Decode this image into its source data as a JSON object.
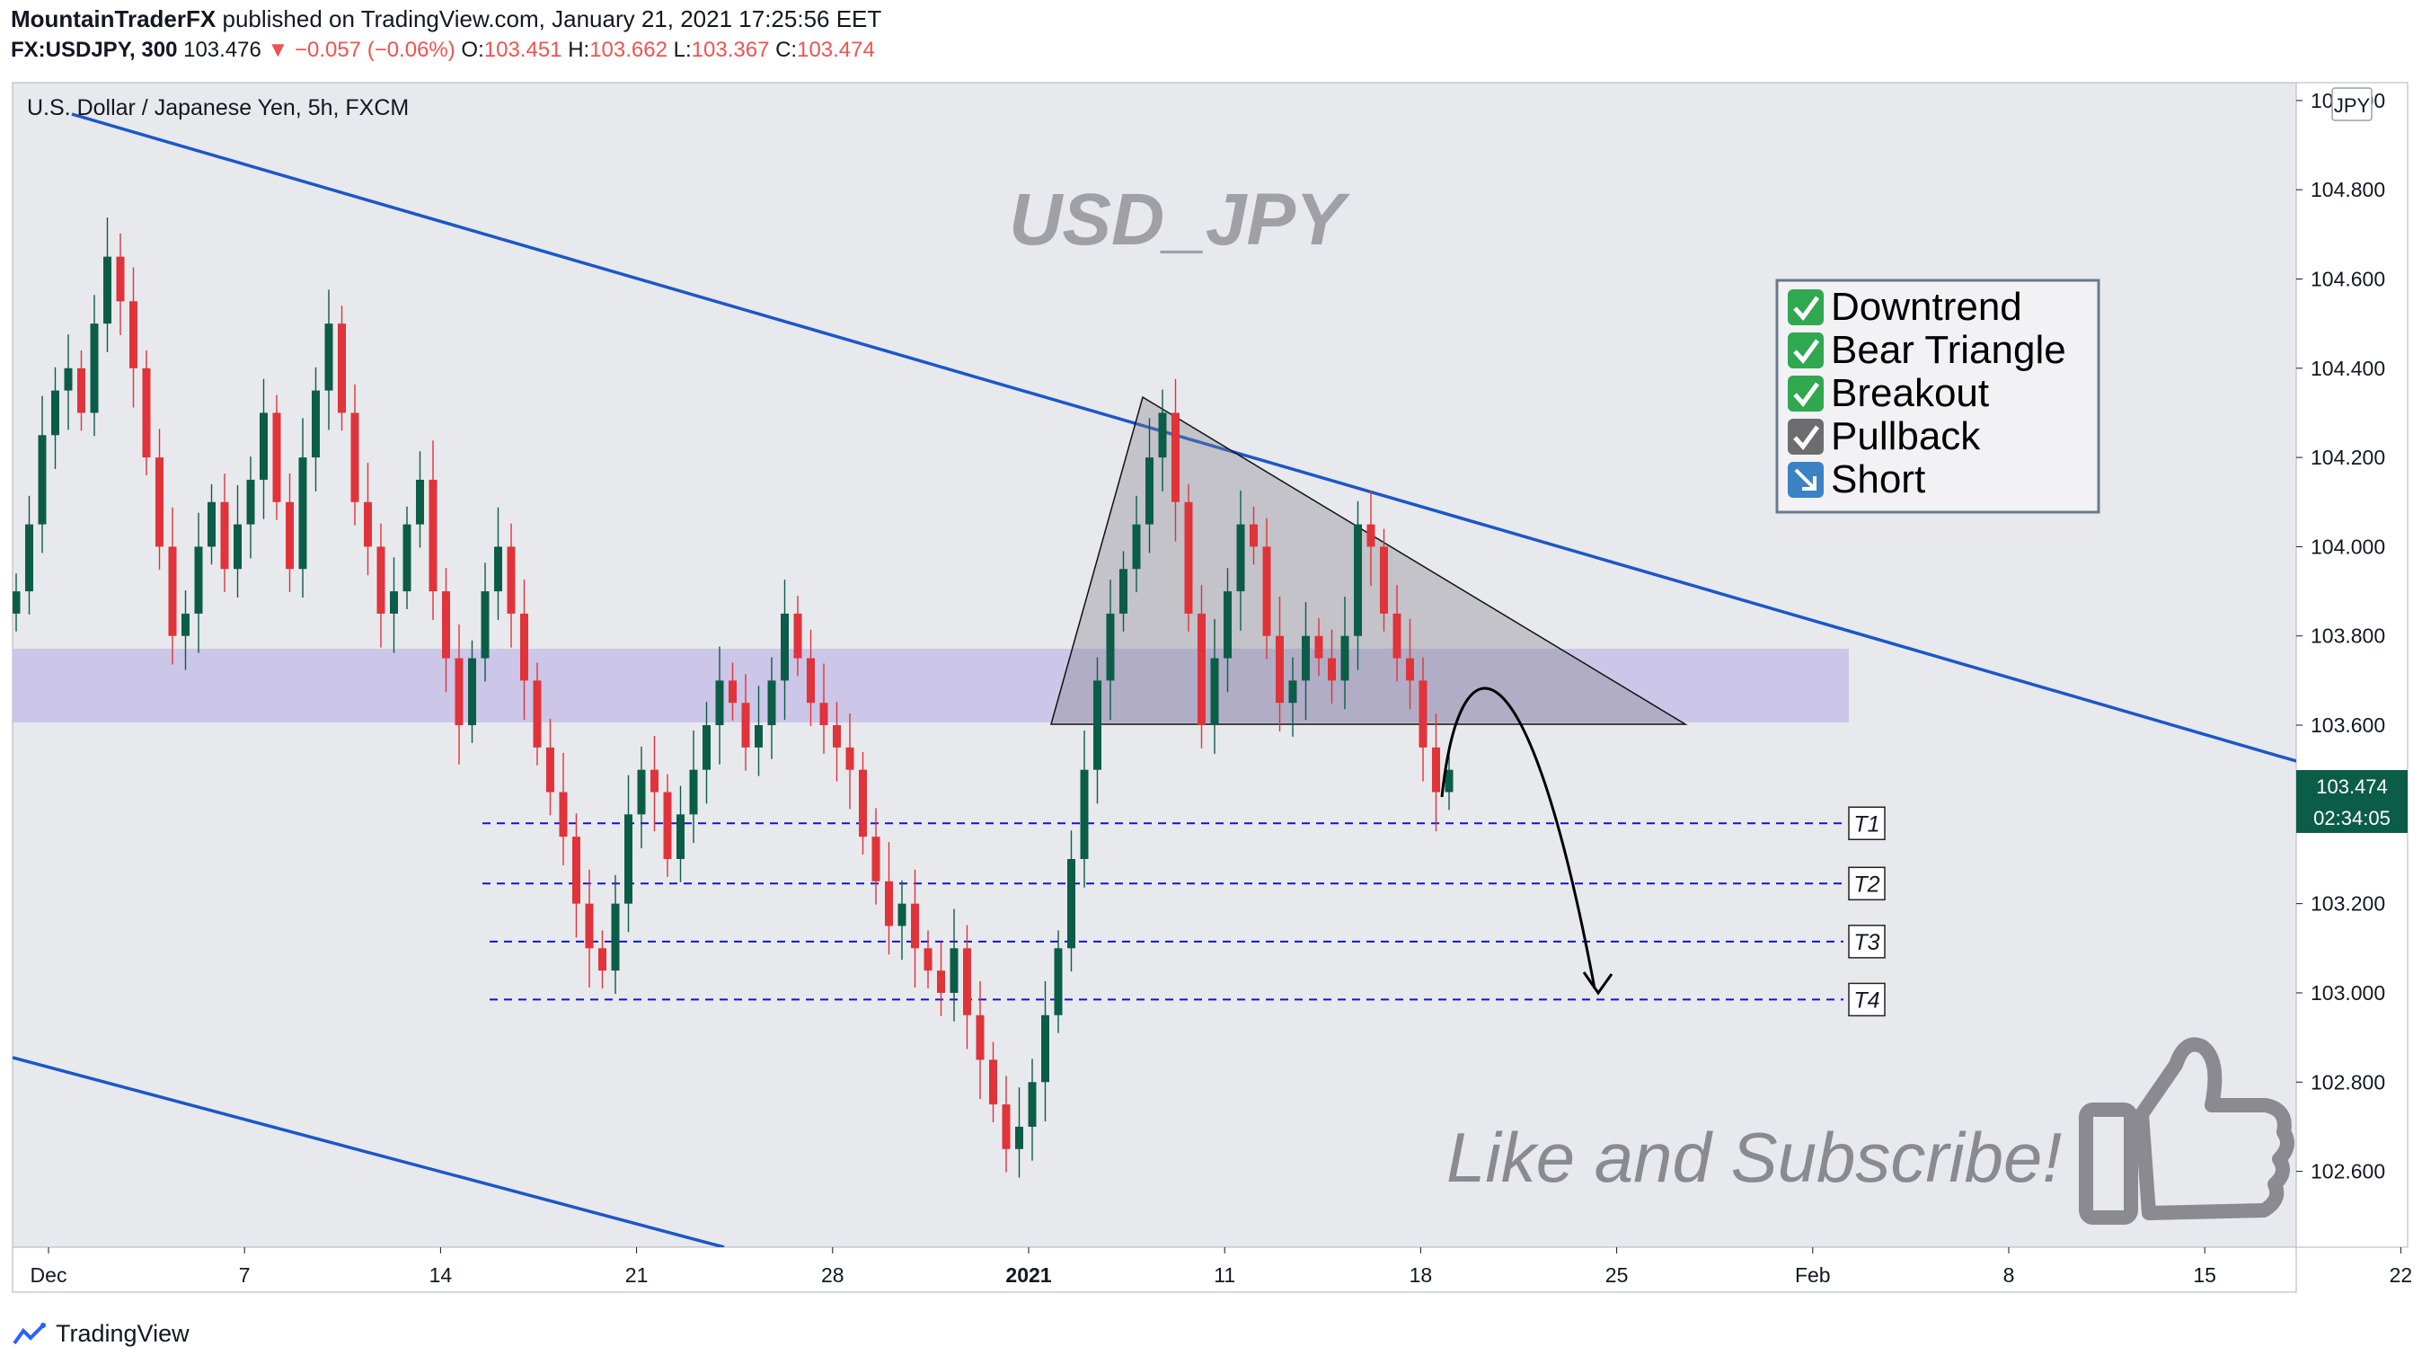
{
  "header": {
    "author": "MountainTraderFX",
    "published": "published on TradingView.com, January 21, 2021 17:25:56 EET",
    "symbol": "FX:USDJPY, 300",
    "last": "103.476",
    "change": "▼ −0.057 (−0.06%)",
    "open_label": "O:",
    "open": "103.451",
    "high_label": "H:",
    "high": "103.662",
    "low_label": "L:",
    "low": "103.367",
    "close_label": "C:",
    "close": "103.474"
  },
  "pane_title": "U.S. Dollar / Japanese Yen, 5h, FXCM",
  "watermark": "USD_JPY",
  "checklist": [
    {
      "icon": "check-green-icon",
      "text": "Downtrend"
    },
    {
      "icon": "check-green-icon",
      "text": "Bear Triangle"
    },
    {
      "icon": "check-green-icon",
      "text": "Breakout"
    },
    {
      "icon": "check-gray-icon",
      "text": "Pullback"
    },
    {
      "icon": "arrow-down-right-icon",
      "text": "Short"
    }
  ],
  "targets": [
    {
      "label": "T1",
      "price": 103.38
    },
    {
      "label": "T2",
      "price": 103.245
    },
    {
      "label": "T3",
      "price": 103.115
    },
    {
      "label": "T4",
      "price": 102.985
    }
  ],
  "cta": "Like and Subscribe!",
  "footer_brand": "TradingView",
  "currency_badge": "JPY",
  "price_tag": "103.474",
  "countdown": "02:34:05",
  "colors": {
    "up": "#0b5d48",
    "down": "#e0333a",
    "channel": "#1c57c9",
    "zone": "#c7c0e6",
    "target_line": "#1515c8",
    "background": "#e8e9ed"
  },
  "chart_data": {
    "type": "candlestick",
    "title": "U.S. Dollar / Japanese Yen, 5h, FXCM",
    "x_tick_labels": [
      "Dec",
      "7",
      "14",
      "21",
      "28",
      "2021",
      "11",
      "18",
      "25",
      "Feb",
      "8",
      "15",
      "22"
    ],
    "y_tick_labels": [
      "102.600",
      "102.800",
      "103.000",
      "103.200",
      "103.400",
      "103.600",
      "103.800",
      "104.000",
      "104.200",
      "104.400",
      "104.600",
      "104.800",
      "105.000"
    ],
    "ylim": [
      102.43,
      105.04
    ],
    "grid": false,
    "closes": [
      103.9,
      104.05,
      104.25,
      104.35,
      104.4,
      104.3,
      104.5,
      104.65,
      104.55,
      104.4,
      104.2,
      104.0,
      103.8,
      103.85,
      104.0,
      104.1,
      103.95,
      104.05,
      104.15,
      104.3,
      104.1,
      103.95,
      104.2,
      104.35,
      104.5,
      104.3,
      104.1,
      104.0,
      103.85,
      103.9,
      104.05,
      104.15,
      103.9,
      103.75,
      103.6,
      103.75,
      103.9,
      104.0,
      103.85,
      103.7,
      103.55,
      103.45,
      103.35,
      103.2,
      103.1,
      103.05,
      103.2,
      103.4,
      103.5,
      103.45,
      103.3,
      103.4,
      103.5,
      103.6,
      103.7,
      103.65,
      103.55,
      103.6,
      103.7,
      103.85,
      103.75,
      103.65,
      103.6,
      103.55,
      103.5,
      103.35,
      103.25,
      103.15,
      103.2,
      103.1,
      103.05,
      103.0,
      103.1,
      102.95,
      102.85,
      102.75,
      102.65,
      102.7,
      102.8,
      102.95,
      103.1,
      103.3,
      103.5,
      103.7,
      103.85,
      103.95,
      104.05,
      104.2,
      104.3,
      104.1,
      103.85,
      103.6,
      103.75,
      103.9,
      104.05,
      104.0,
      103.8,
      103.65,
      103.7,
      103.8,
      103.75,
      103.7,
      103.8,
      104.05,
      104.0,
      103.85,
      103.75,
      103.7,
      103.55,
      103.45,
      103.5
    ]
  }
}
